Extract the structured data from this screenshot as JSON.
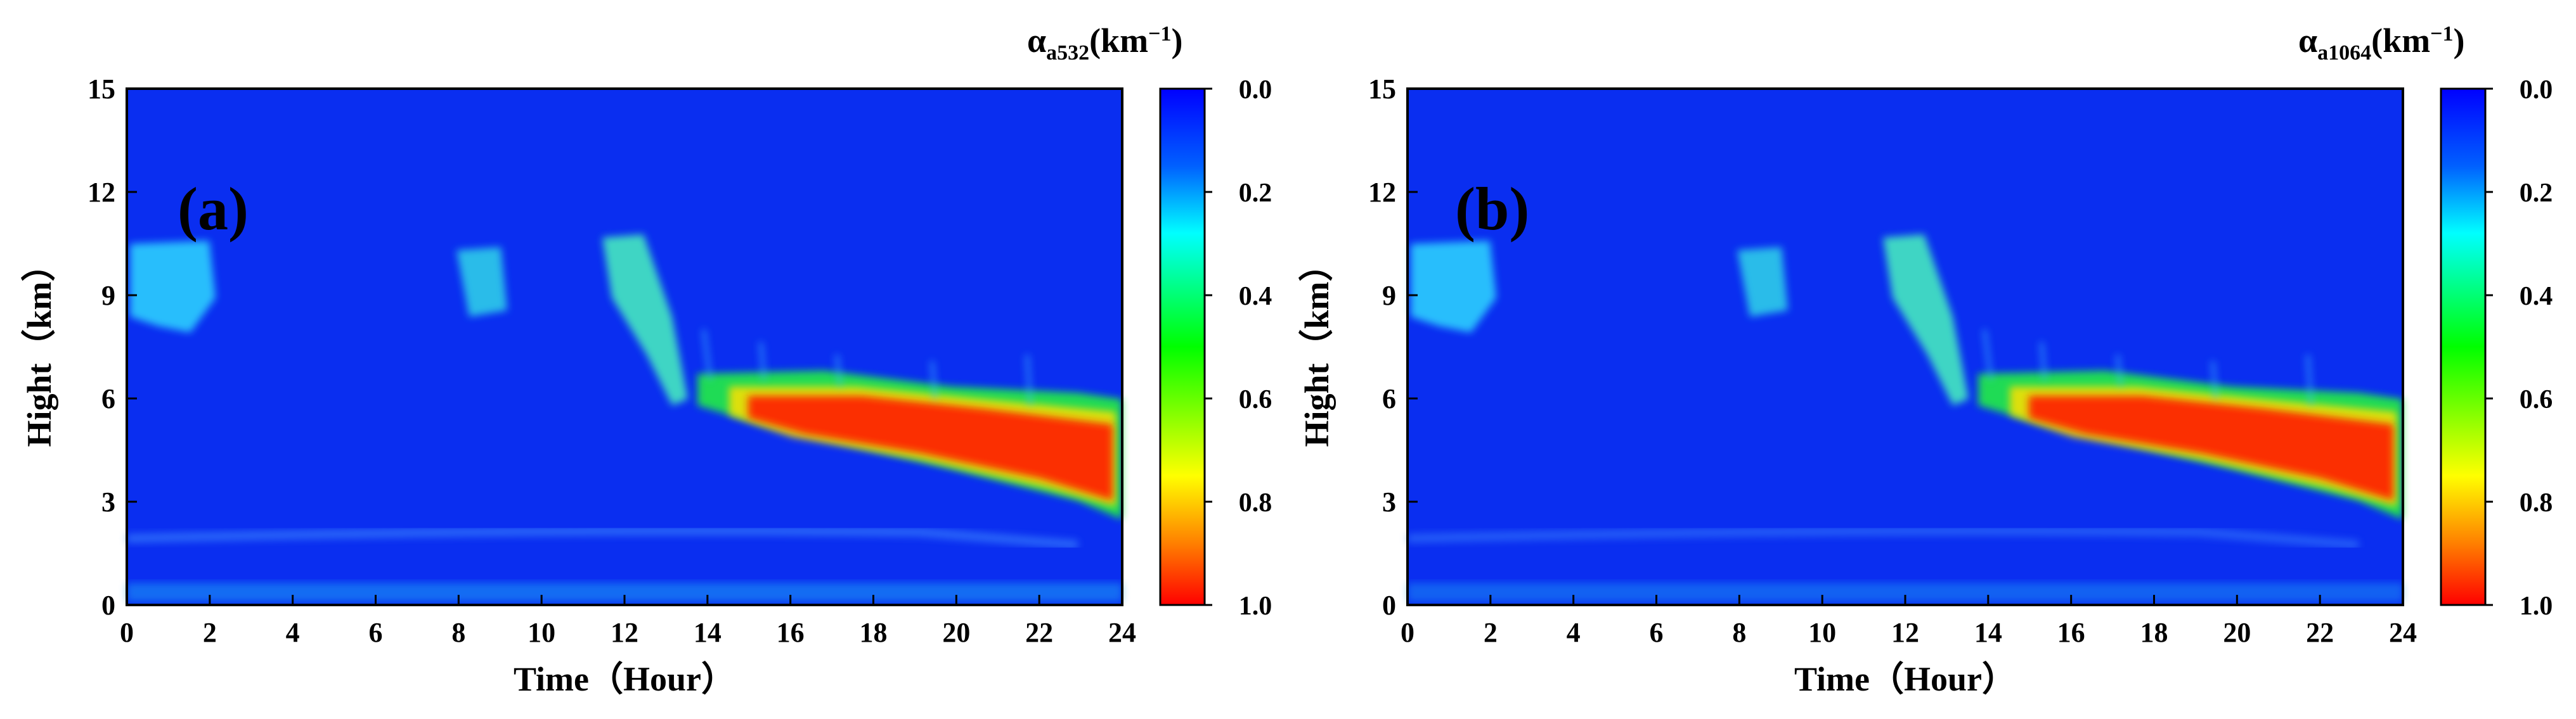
{
  "chart_data": [
    {
      "type": "heatmap",
      "panel_label": "(a)",
      "xlabel": "Time（Hour）",
      "ylabel": "Hight（km）",
      "xlim": [
        0,
        24
      ],
      "ylim": [
        0,
        15
      ],
      "xticks": [
        "0",
        "2",
        "4",
        "6",
        "8",
        "10",
        "12",
        "14",
        "16",
        "18",
        "20",
        "22",
        "24"
      ],
      "yticks": [
        "0",
        "3",
        "6",
        "9",
        "12",
        "15"
      ],
      "colorbar": {
        "symbol": "α",
        "subscript": "a532",
        "unit": "(km",
        "unit_exp": "−1",
        "unit_close": ")",
        "range": [
          0.0,
          1.0
        ],
        "ticks": [
          "0.0",
          "0.2",
          "0.4",
          "0.6",
          "0.8",
          "1.0"
        ],
        "colors": [
          "#0000ff",
          "#0080ff",
          "#00ffff",
          "#00ff00",
          "#ffff00",
          "#ff8000",
          "#ff0000"
        ]
      },
      "features": [
        {
          "name": "cirrus",
          "time_range": [
            0,
            2
          ],
          "height_range": [
            8.0,
            10.6
          ],
          "alpha": 0.25
        },
        {
          "name": "cirrus",
          "time_range": [
            8.5,
            9.5
          ],
          "height_range": [
            8.3,
            10.3
          ],
          "alpha": 0.3
        },
        {
          "name": "descending cloud",
          "time_range": [
            11.5,
            13.5
          ],
          "height_range": [
            5.8,
            10.6
          ],
          "alpha": 0.4
        },
        {
          "name": "dense cloud layer",
          "time_range": [
            14,
            24
          ],
          "height_range": [
            2.7,
            6.3
          ],
          "alpha": 1.0
        },
        {
          "name": "boundary layer",
          "time_range": [
            0,
            24
          ],
          "height_range": [
            0,
            0.8
          ],
          "alpha": 0.12
        }
      ]
    },
    {
      "type": "heatmap",
      "panel_label": "(b)",
      "xlabel": "Time（Hour）",
      "ylabel": "Hight（km）",
      "xlim": [
        0,
        24
      ],
      "ylim": [
        0,
        15
      ],
      "xticks": [
        "0",
        "2",
        "4",
        "6",
        "8",
        "10",
        "12",
        "14",
        "16",
        "18",
        "20",
        "22",
        "24"
      ],
      "yticks": [
        "0",
        "3",
        "6",
        "9",
        "12",
        "15"
      ],
      "colorbar": {
        "symbol": "α",
        "subscript": "a1064",
        "unit": "(km",
        "unit_exp": "−1",
        "unit_close": ")",
        "range": [
          0.0,
          1.0
        ],
        "ticks": [
          "0.0",
          "0.2",
          "0.4",
          "0.6",
          "0.8",
          "1.0"
        ],
        "colors": [
          "#0000ff",
          "#0080ff",
          "#00ffff",
          "#00ff00",
          "#ffff00",
          "#ff8000",
          "#ff0000"
        ]
      },
      "features": [
        {
          "name": "cirrus",
          "time_range": [
            0,
            2
          ],
          "height_range": [
            8.0,
            10.6
          ],
          "alpha": 0.25
        },
        {
          "name": "cirrus",
          "time_range": [
            8.5,
            9.5
          ],
          "height_range": [
            8.3,
            10.3
          ],
          "alpha": 0.3
        },
        {
          "name": "descending cloud",
          "time_range": [
            11.5,
            13.5
          ],
          "height_range": [
            5.8,
            10.6
          ],
          "alpha": 0.4
        },
        {
          "name": "dense cloud layer",
          "time_range": [
            14,
            24
          ],
          "height_range": [
            2.7,
            6.3
          ],
          "alpha": 1.0
        },
        {
          "name": "boundary layer",
          "time_range": [
            0,
            24
          ],
          "height_range": [
            0,
            0.8
          ],
          "alpha": 0.1
        }
      ]
    }
  ]
}
